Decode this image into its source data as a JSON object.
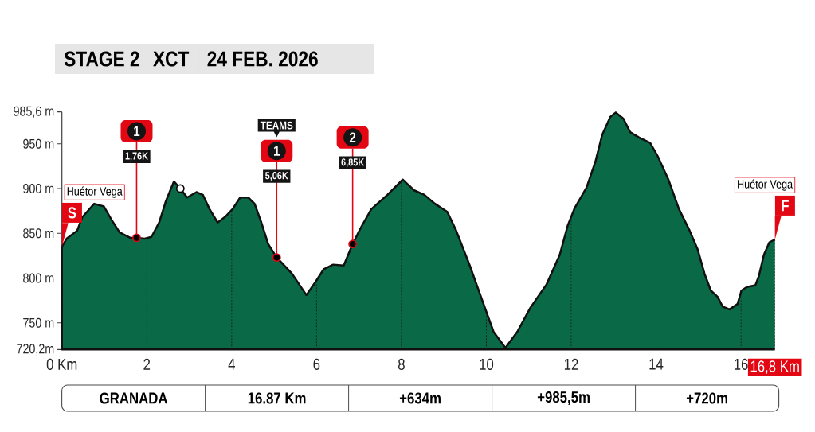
{
  "chart_data": {
    "type": "area",
    "title": "STAGE 2",
    "subtitle": "XCT",
    "xlim": [
      0,
      16.8
    ],
    "xticks": [
      {
        "value": 0,
        "label": "0 Km"
      },
      2,
      4,
      6,
      8,
      10,
      12,
      14,
      16,
      {
        "value": 16.8,
        "label": "16,8 Km"
      }
    ],
    "ylim": [
      720.2,
      985.6
    ],
    "yticks": [
      {
        "value": 720.2,
        "label": "720,2m"
      },
      {
        "value": 750,
        "label": "750 m"
      },
      {
        "value": 800,
        "label": "800 m"
      },
      {
        "value": 850,
        "label": "850 m"
      },
      {
        "value": 900,
        "label": "900 m"
      },
      {
        "value": 950,
        "label": "950 m"
      },
      {
        "value": 985.6,
        "label": "985,6 m"
      }
    ],
    "grid": "x",
    "series": [
      {
        "color": "#0a6a48",
        "x": [
          0,
          0.11,
          0.36,
          0.48,
          0.76,
          0.99,
          1.17,
          1.36,
          1.61,
          1.76,
          1.95,
          2.11,
          2.29,
          2.45,
          2.64,
          2.79,
          2.95,
          3.17,
          3.32,
          3.48,
          3.67,
          3.86,
          4.02,
          4.2,
          4.39,
          4.54,
          4.7,
          4.86,
          5.06,
          5.42,
          5.76,
          5.98,
          6.17,
          6.39,
          6.64,
          6.85,
          7.04,
          7.29,
          7.67,
          8.03,
          8.3,
          8.54,
          8.79,
          9.08,
          9.29,
          9.61,
          9.92,
          10.17,
          10.45,
          10.73,
          11.04,
          11.42,
          11.73,
          11.92,
          12.08,
          12.36,
          12.57,
          12.73,
          12.92,
          13.05,
          13.23,
          13.39,
          13.6,
          13.86,
          14.04,
          14.29,
          14.54,
          14.79,
          14.98,
          15.14,
          15.29,
          15.45,
          15.57,
          15.73,
          15.92,
          16.01,
          16.14,
          16.34,
          16.42,
          16.54,
          16.67,
          16.8
        ],
        "values": [
          835,
          844,
          853,
          868,
          883,
          880,
          865,
          851,
          845,
          845,
          844,
          846,
          862,
          886,
          908,
          900,
          890,
          896,
          893,
          877,
          862,
          869,
          877,
          890,
          890,
          883,
          862,
          838,
          823,
          805,
          781,
          796,
          810,
          815,
          814,
          838,
          856,
          877,
          893,
          910,
          898,
          893,
          883,
          874,
          853,
          814,
          773,
          740,
          722,
          740,
          767,
          793,
          826,
          859,
          878,
          901,
          930,
          960,
          980,
          985,
          978,
          963,
          957,
          951,
          936,
          910,
          877,
          853,
          832,
          805,
          786,
          779,
          768,
          765,
          771,
          786,
          790,
          792,
          802,
          826,
          840,
          843
        ]
      },
      {
        "type": "scatter",
        "color": "#ffffff",
        "marker": "circle",
        "x": [
          2.79
        ],
        "values": [
          900
        ]
      }
    ],
    "annotations": [
      "24 FEB. 2026",
      "GRANADA",
      "16.87 Km",
      "+634m",
      "+985,5m",
      "+720m",
      {
        "text": "S",
        "x": 0,
        "y": 835
      },
      "Huétor Vega",
      {
        "text": "1,76K",
        "x": 1.76,
        "y": 845
      },
      {
        "text": "1",
        "x": 1.76,
        "y": 845
      },
      {
        "text": "5,06K",
        "x": 5.06,
        "y": 823
      },
      {
        "text": "1",
        "x": 5.06,
        "y": 823
      },
      "TEAMS",
      {
        "text": "6,85K",
        "x": 6.85,
        "y": 838
      },
      {
        "text": "2",
        "x": 6.85,
        "y": 838
      },
      {
        "text": "F",
        "x": 16.8,
        "y": 843
      },
      "Huétor Vega"
    ]
  }
}
